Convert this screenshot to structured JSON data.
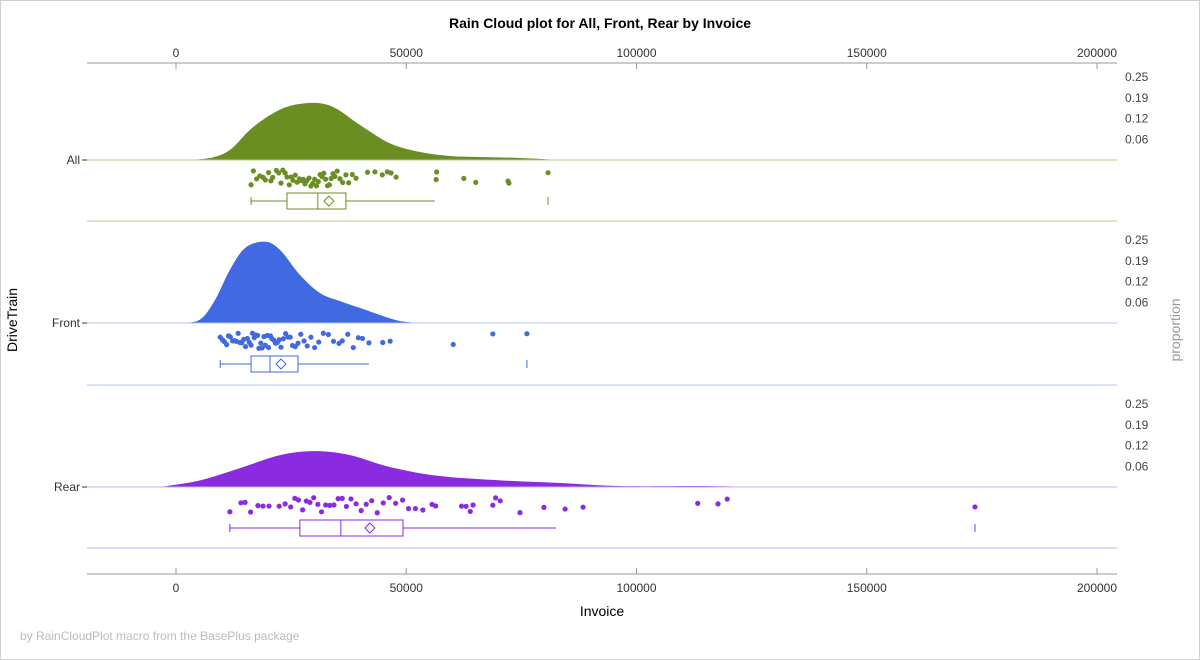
{
  "chart_data": {
    "type": "raincloud",
    "title": "Rain Cloud plot for All, Front, Rear by Invoice",
    "xlabel": "Invoice",
    "ylabel": "DriveTrain",
    "y2label": "proportion",
    "xlim": [
      -19000,
      204000
    ],
    "xticks": [
      "0",
      "50000",
      "100000",
      "150000",
      "200000"
    ],
    "xtick_values": [
      0,
      50000,
      100000,
      150000,
      200000
    ],
    "proportion_ticks": [
      "0.25",
      "0.19",
      "0.12",
      "0.06"
    ],
    "proportion_tick_values": [
      0.25,
      0.1875,
      0.125,
      0.0625
    ],
    "footnote": "by RainCloudPlot macro from the BasePlus package",
    "groups": [
      {
        "name": "All",
        "color": "#6B8E23",
        "line_color": "#B5C98E",
        "density": {
          "x": [
            2000,
            7400,
            11700,
            16000,
            20400,
            24750,
            30200,
            34500,
            40000,
            46500,
            53000,
            59500,
            66000,
            74700,
            83400
          ],
          "y": [
            0,
            0.006,
            0.03,
            0.09,
            0.135,
            0.163,
            0.172,
            0.157,
            0.105,
            0.05,
            0.024,
            0.012,
            0.009,
            0.006,
            0
          ]
        },
        "box": {
          "min": 16300,
          "q1": 24100,
          "median": 30800,
          "mean": 33200,
          "q3": 36900,
          "whisker_max": 56200,
          "max": 80800
        },
        "points": [
          16300,
          16800,
          17500,
          18200,
          18900,
          19400,
          20100,
          20600,
          21000,
          21800,
          22300,
          22800,
          23200,
          23700,
          24100,
          24600,
          25000,
          25400,
          25900,
          26300,
          26800,
          27200,
          27600,
          28000,
          28400,
          28900,
          29300,
          29700,
          30100,
          30500,
          30900,
          31300,
          31700,
          32100,
          32500,
          32900,
          33300,
          33700,
          34100,
          34500,
          35000,
          35600,
          36200,
          36900,
          37500,
          38300,
          39100,
          41600,
          43200,
          44800,
          45900,
          46700,
          47800,
          56500,
          56600,
          62500,
          65100,
          72100,
          72300,
          80800
        ]
      },
      {
        "name": "Front",
        "color": "#4169E1",
        "line_color": "#B4C4F2",
        "density": {
          "x": [
            900,
            5200,
            8500,
            11700,
            15000,
            19300,
            22600,
            26900,
            31300,
            35600,
            40000,
            44300,
            48600,
            53000
          ],
          "y": [
            0,
            0.01,
            0.07,
            0.16,
            0.226,
            0.245,
            0.22,
            0.145,
            0.09,
            0.066,
            0.045,
            0.024,
            0.006,
            0
          ]
        },
        "box": {
          "min": 9600,
          "q1": 16300,
          "median": 20400,
          "mean": 22800,
          "q3": 26500,
          "whisker_max": 41900,
          "max": 76200
        },
        "points": [
          9600,
          10100,
          10500,
          11000,
          11400,
          11800,
          12300,
          12700,
          13100,
          13500,
          13900,
          14300,
          14700,
          15100,
          15500,
          15900,
          16300,
          16600,
          17000,
          17300,
          17700,
          18000,
          18400,
          18700,
          19100,
          19400,
          19800,
          20100,
          20500,
          20800,
          21200,
          21600,
          22000,
          22400,
          22800,
          23300,
          23800,
          24300,
          24800,
          25300,
          25900,
          26500,
          27100,
          27800,
          28500,
          29300,
          30100,
          31000,
          32000,
          33100,
          34200,
          35400,
          36100,
          37300,
          38500,
          39600,
          40500,
          41900,
          44900,
          46500,
          60200,
          68800,
          76200
        ]
      },
      {
        "name": "Rear",
        "color": "#8A2BE2",
        "line_color": "#CFAEF3",
        "density": {
          "x": [
            -3500,
            5200,
            13900,
            22600,
            30200,
            37800,
            46500,
            57300,
            70400,
            83400,
            96400,
            113800,
            126800
          ],
          "y": [
            0,
            0.02,
            0.057,
            0.096,
            0.108,
            0.096,
            0.06,
            0.033,
            0.02,
            0.012,
            0.003,
            0.003,
            0
          ]
        },
        "box": {
          "min": 11700,
          "q1": 26900,
          "median": 35800,
          "mean": 42100,
          "q3": 49300,
          "whisker_max": 82500,
          "max": 173500
        },
        "points": [
          11700,
          14100,
          15000,
          16200,
          17800,
          18900,
          20200,
          22400,
          23700,
          24900,
          25800,
          26600,
          27500,
          28300,
          29100,
          29900,
          30800,
          31600,
          32500,
          33400,
          34300,
          35200,
          36100,
          37000,
          38000,
          39100,
          40200,
          41300,
          42500,
          43700,
          45000,
          46300,
          47700,
          49200,
          50500,
          52000,
          53600,
          55600,
          56400,
          62000,
          63000,
          63900,
          64500,
          68800,
          69400,
          70400,
          74700,
          79900,
          84500,
          88400,
          113300,
          117700,
          119700,
          173500
        ]
      }
    ]
  }
}
